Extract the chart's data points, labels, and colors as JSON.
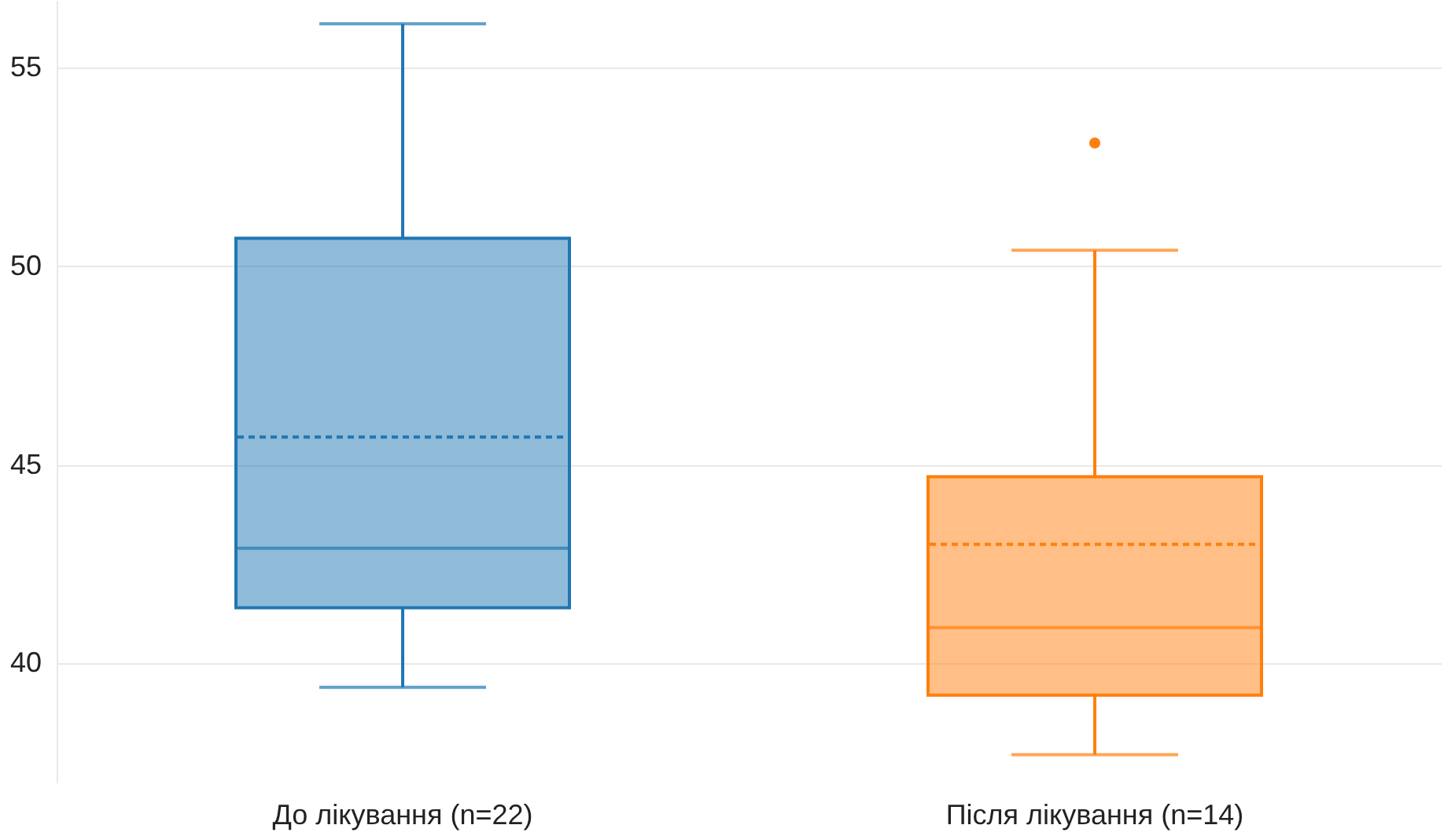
{
  "chart_data": {
    "type": "box",
    "categories": [
      "До лікування (n=22)",
      "Після лікування (n=14)"
    ],
    "colors": [
      "#1f77b4",
      "#ff7f0e"
    ],
    "boxes": [
      {
        "low": 39.4,
        "q1": 41.4,
        "median": 42.9,
        "q3": 50.7,
        "high": 56.1,
        "mean": 45.7
      },
      {
        "low": 37.7,
        "q1": 39.2,
        "median": 40.9,
        "q3": 44.7,
        "high": 50.4,
        "mean": 43.0,
        "outliers": [
          53.1
        ]
      }
    ],
    "ylim": [
      37,
      56.7
    ],
    "yticks": [
      40,
      45,
      50,
      55
    ],
    "grid": "y"
  }
}
